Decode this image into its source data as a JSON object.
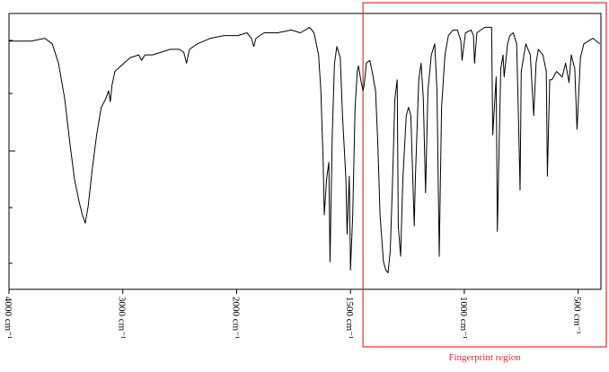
{
  "chart_data": {
    "type": "line",
    "x": [
      4000,
      3805,
      3685,
      3620,
      3565,
      3510,
      3465,
      3425,
      3385,
      3355,
      3330,
      3305,
      3270,
      3230,
      3190,
      3150,
      3125,
      3110,
      3095,
      3070,
      3015,
      2935,
      2860,
      2835,
      2805,
      2740,
      2660,
      2585,
      2505,
      2465,
      2440,
      2415,
      2345,
      2230,
      2110,
      1995,
      1955,
      1935,
      1925,
      1915,
      1880,
      1820,
      1760,
      1720,
      1680,
      1660,
      1640,
      1630,
      1620,
      1615,
      1605,
      1595,
      1590,
      1580,
      1570,
      1560,
      1545,
      1535,
      1520,
      1515,
      1505,
      1500,
      1490,
      1480,
      1470,
      1465,
      1455,
      1445,
      1440,
      1430,
      1415,
      1405,
      1390,
      1380,
      1370,
      1355,
      1345,
      1335,
      1325,
      1315,
      1305,
      1295,
      1290,
      1280,
      1270,
      1255,
      1245,
      1235,
      1220,
      1215,
      1200,
      1190,
      1180,
      1170,
      1160,
      1145,
      1130,
      1120,
      1110,
      1100,
      1085,
      1070,
      1050,
      1030,
      1015,
      1010,
      995,
      970,
      960,
      955,
      945,
      910,
      880,
      875,
      860,
      855,
      840,
      830,
      825,
      810,
      800,
      785,
      770,
      765,
      755,
      750,
      730,
      710,
      695,
      685,
      675,
      655,
      640,
      635,
      625,
      615,
      595,
      570,
      555,
      540,
      530,
      515,
      505,
      490,
      475,
      455,
      435,
      405
    ],
    "series": [
      {
        "color": "#000000",
        "values": [
          90,
          90,
          91,
          89,
          82,
          69,
          53,
          40,
          32,
          27,
          24,
          30,
          43,
          56,
          66,
          69,
          72,
          68,
          74,
          79,
          81,
          84,
          85,
          83,
          85,
          85,
          86,
          87,
          87,
          86,
          82,
          87,
          89,
          91,
          92,
          92,
          93,
          91,
          88,
          91,
          93,
          93,
          94,
          93,
          95,
          93,
          85,
          72,
          46,
          27,
          40,
          46,
          10,
          56,
          82,
          88,
          84,
          63,
          40,
          20,
          41,
          7,
          27,
          66,
          79,
          81,
          76,
          72,
          74,
          82,
          83,
          79,
          72,
          53,
          27,
          10,
          7,
          6,
          14,
          40,
          69,
          76,
          23,
          12,
          40,
          63,
          66,
          63,
          23,
          40,
          76,
          82,
          69,
          35,
          72,
          85,
          89,
          72,
          12,
          66,
          85,
          92,
          94,
          94,
          90,
          83,
          93,
          94,
          92,
          82,
          93,
          95,
          95,
          56,
          77,
          21,
          80,
          85,
          77,
          89,
          92,
          93,
          89,
          72,
          36,
          79,
          89,
          85,
          63,
          82,
          87,
          85,
          79,
          41,
          76,
          76,
          79,
          77,
          82,
          75,
          85,
          80,
          58,
          84,
          89,
          90,
          91,
          89
        ]
      }
    ],
    "xlim": [
      4000,
      400
    ],
    "ylim": [
      0,
      100
    ],
    "xticks": [
      {
        "value": 4000,
        "label": "4000 cm⁻¹"
      },
      {
        "value": 3000,
        "label": "3000 cm⁻¹"
      },
      {
        "value": 2000,
        "label": "2000 cm⁻¹"
      },
      {
        "value": 1500,
        "label": "1500 cm⁻¹"
      },
      {
        "value": 1000,
        "label": "1000 cm⁻¹"
      },
      {
        "value": 500,
        "label": "500 cm⁻¹"
      }
    ],
    "annotations": [
      {
        "text": "Fingerprint region",
        "range": [
          1445,
          400
        ],
        "color": "#e03030"
      }
    ]
  }
}
